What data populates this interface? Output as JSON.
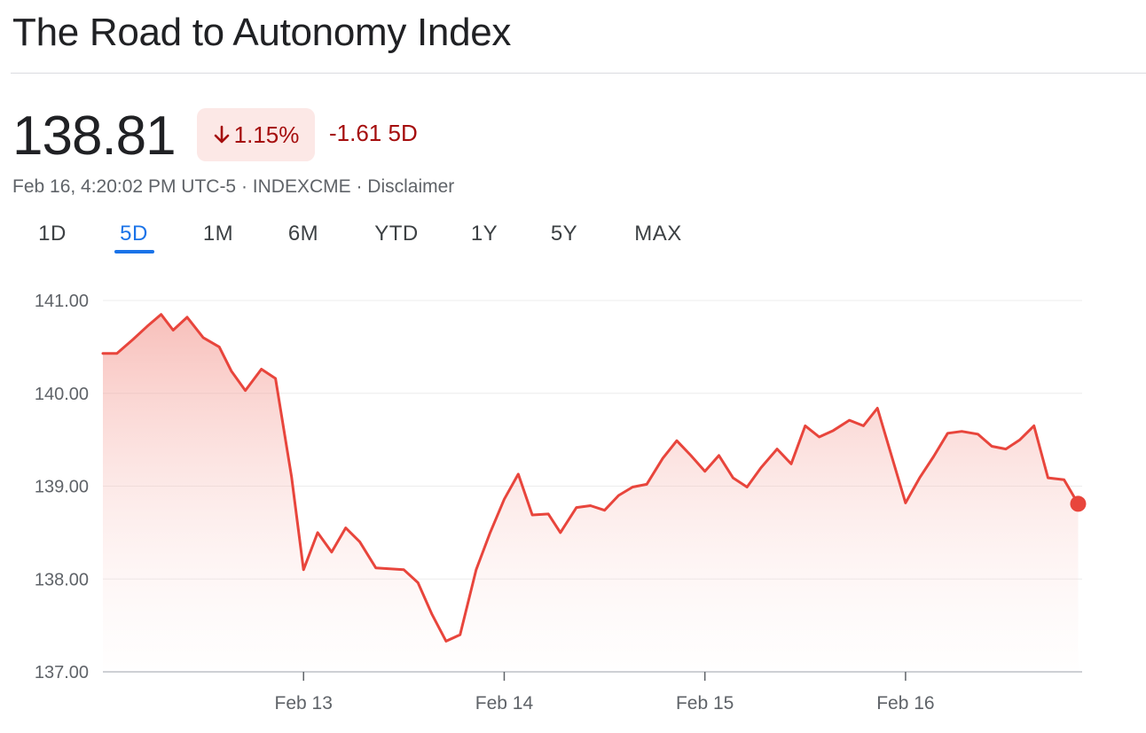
{
  "header": {
    "title": "The Road to Autonomy Index"
  },
  "quote": {
    "price": "138.81",
    "percent_change": "1.15%",
    "change": "-1.61 5D",
    "meta": "Feb 16, 4:20:02 PM UTC-5 · INDEXCME · Disclaimer",
    "direction_icon": "arrow-down-icon"
  },
  "tabs": [
    {
      "label": "1D",
      "active": false
    },
    {
      "label": "5D",
      "active": true
    },
    {
      "label": "1M",
      "active": false
    },
    {
      "label": "6M",
      "active": false
    },
    {
      "label": "YTD",
      "active": false
    },
    {
      "label": "1Y",
      "active": false
    },
    {
      "label": "5Y",
      "active": false
    },
    {
      "label": "MAX",
      "active": false
    }
  ],
  "colors": {
    "line": "#e8453c",
    "accent": "#1a73e8",
    "negative": "#a50e0e",
    "badge_bg": "#fce8e6"
  },
  "chart_data": {
    "type": "area",
    "ylim": [
      137,
      141
    ],
    "y_ticks": [
      "141.00",
      "140.00",
      "139.00",
      "138.00",
      "137.00"
    ],
    "y_tick_values": [
      141,
      140,
      139,
      138,
      137
    ],
    "xlim": [
      0,
      4.88
    ],
    "x_ticks": [
      {
        "label": "Feb 13",
        "value": 1
      },
      {
        "label": "Feb 14",
        "value": 2
      },
      {
        "label": "Feb 15",
        "value": 3
      },
      {
        "label": "Feb 16",
        "value": 4
      }
    ],
    "grid": true,
    "series": [
      {
        "x": [
          0,
          0.07,
          0.15,
          0.22,
          0.29,
          0.35,
          0.42,
          0.5,
          0.58,
          0.64,
          0.71,
          0.79,
          0.86,
          0.94,
          1.0,
          1.07,
          1.14,
          1.21,
          1.28,
          1.36,
          1.5,
          1.57,
          1.64,
          1.71,
          1.78,
          1.86,
          1.93,
          2.0,
          2.07,
          2.14,
          2.22,
          2.28,
          2.36,
          2.43,
          2.5,
          2.57,
          2.64,
          2.71,
          2.79,
          2.86,
          2.93,
          3.0,
          3.07,
          3.14,
          3.21,
          3.28,
          3.36,
          3.43,
          3.5,
          3.57,
          3.64,
          3.72,
          3.79,
          3.86,
          4.0,
          4.07,
          4.14,
          4.21,
          4.28,
          4.36,
          4.43,
          4.5,
          4.57,
          4.64,
          4.71,
          4.79,
          4.86
        ],
        "y": [
          140.43,
          140.43,
          140.58,
          140.72,
          140.85,
          140.68,
          140.82,
          140.6,
          140.5,
          140.24,
          140.03,
          140.26,
          140.16,
          139.1,
          138.1,
          138.5,
          138.29,
          138.55,
          138.4,
          138.12,
          138.1,
          137.96,
          137.62,
          137.33,
          137.4,
          138.1,
          138.5,
          138.86,
          139.13,
          138.69,
          138.7,
          138.5,
          138.77,
          138.79,
          138.74,
          138.9,
          138.99,
          139.02,
          139.3,
          139.49,
          139.33,
          139.16,
          139.33,
          139.09,
          138.99,
          139.2,
          139.4,
          139.24,
          139.65,
          139.53,
          139.6,
          139.71,
          139.65,
          139.84,
          138.82,
          139.09,
          139.32,
          139.57,
          139.59,
          139.56,
          139.43,
          139.4,
          139.5,
          139.65,
          139.09,
          139.07,
          138.81
        ]
      }
    ],
    "last_point": {
      "x": 4.86,
      "y": 138.81
    }
  }
}
